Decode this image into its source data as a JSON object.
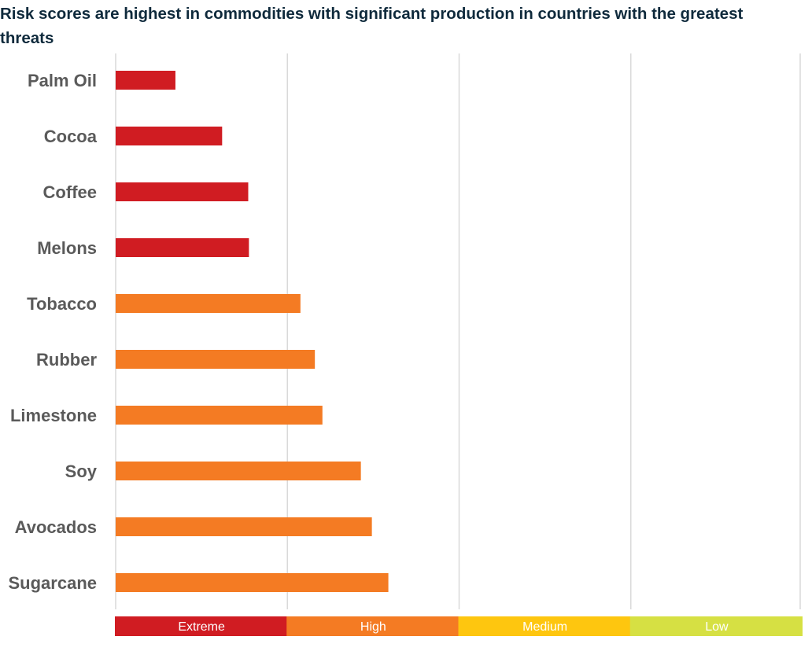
{
  "chart_data": {
    "type": "bar",
    "orientation": "horizontal",
    "title": "Risk scores are highest in commodities with significant production in countries with the greatest threats",
    "categories": [
      "Palm Oil",
      "Cocoa",
      "Coffee",
      "Melons",
      "Tobacco",
      "Rubber",
      "Limestone",
      "Soy",
      "Avocados",
      "Sugarcane"
    ],
    "values": [
      0.87,
      1.55,
      1.93,
      1.94,
      2.69,
      2.9,
      3.01,
      3.57,
      3.73,
      3.97
    ],
    "xlim": [
      0,
      10
    ],
    "grid": true,
    "bands": [
      {
        "label": "Extreme",
        "from": 0,
        "to": 2.5,
        "color": "#d01c22"
      },
      {
        "label": "High",
        "from": 2.5,
        "to": 5,
        "color": "#f47b23"
      },
      {
        "label": "Medium",
        "from": 5,
        "to": 7.5,
        "color": "#fec60f"
      },
      {
        "label": "Low",
        "from": 7.5,
        "to": 10,
        "color": "#d6e043"
      }
    ],
    "gridlines": [
      0,
      2.5,
      5,
      7.5,
      10
    ]
  }
}
